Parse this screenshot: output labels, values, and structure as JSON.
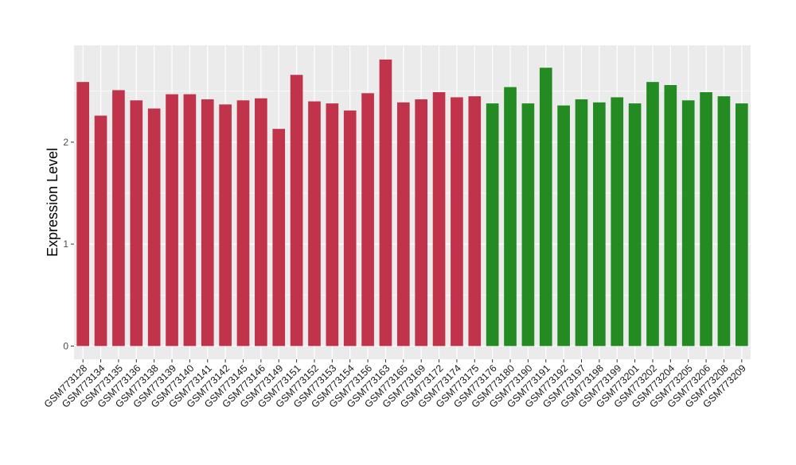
{
  "chart_data": {
    "type": "bar",
    "title": "",
    "xlabel": "",
    "ylabel": "Expression Level",
    "ylim": [
      -0.13,
      2.95
    ],
    "yticks": [
      0,
      1,
      2
    ],
    "grid": true,
    "legend": "none",
    "categories": [
      "GSM773128",
      "GSM773134",
      "GSM773135",
      "GSM773136",
      "GSM773138",
      "GSM773139",
      "GSM773140",
      "GSM773141",
      "GSM773142",
      "GSM773145",
      "GSM773146",
      "GSM773149",
      "GSM773151",
      "GSM773152",
      "GSM773153",
      "GSM773154",
      "GSM773156",
      "GSM773163",
      "GSM773165",
      "GSM773169",
      "GSM773172",
      "GSM773174",
      "GSM773175",
      "GSM773176",
      "GSM773180",
      "GSM773190",
      "GSM773191",
      "GSM773192",
      "GSM773197",
      "GSM773198",
      "GSM773199",
      "GSM773201",
      "GSM773202",
      "GSM773204",
      "GSM773205",
      "GSM773206",
      "GSM773208",
      "GSM773209"
    ],
    "values": [
      2.59,
      2.26,
      2.51,
      2.41,
      2.33,
      2.47,
      2.47,
      2.42,
      2.37,
      2.41,
      2.43,
      2.13,
      2.66,
      2.4,
      2.38,
      2.31,
      2.48,
      2.81,
      2.39,
      2.42,
      2.49,
      2.44,
      2.45,
      2.38,
      2.54,
      2.38,
      2.73,
      2.36,
      2.42,
      2.39,
      2.44,
      2.38,
      2.59,
      2.56,
      2.41,
      2.49,
      2.45,
      2.38
    ],
    "groups": [
      "red",
      "red",
      "red",
      "red",
      "red",
      "red",
      "red",
      "red",
      "red",
      "red",
      "red",
      "red",
      "red",
      "red",
      "red",
      "red",
      "red",
      "red",
      "red",
      "red",
      "red",
      "red",
      "red",
      "green",
      "green",
      "green",
      "green",
      "green",
      "green",
      "green",
      "green",
      "green",
      "green",
      "green",
      "green",
      "green",
      "green",
      "green"
    ],
    "colors": {
      "red": "#c1334a",
      "green": "#238b22",
      "panel": "#ebebeb",
      "grid": "#ffffff"
    }
  }
}
